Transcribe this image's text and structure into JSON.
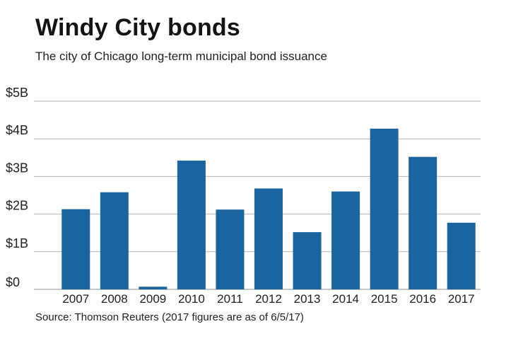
{
  "chart_data": {
    "type": "bar",
    "title": "Windy City bonds",
    "subtitle": "The city of Chicago long-term municipal bond issuance",
    "source": "Source: Thomson Reuters (2017 figures are as of 6/5/17)",
    "xlabel": "",
    "ylabel": "",
    "ylim": [
      0,
      5
    ],
    "y_unit": "billion USD",
    "yticks": [
      {
        "value": 0,
        "label": "$0"
      },
      {
        "value": 1,
        "label": "$1B"
      },
      {
        "value": 2,
        "label": "$2B"
      },
      {
        "value": 3,
        "label": "$3B"
      },
      {
        "value": 4,
        "label": "$4B"
      },
      {
        "value": 5,
        "label": "$5B"
      }
    ],
    "categories": [
      "2007",
      "2008",
      "2009",
      "2010",
      "2011",
      "2012",
      "2013",
      "2014",
      "2015",
      "2016",
      "2017"
    ],
    "values": [
      2.13,
      2.58,
      0.07,
      3.42,
      2.12,
      2.68,
      1.52,
      2.6,
      4.27,
      3.52,
      1.77
    ],
    "bar_color": "#1a64a0",
    "grid": true
  }
}
